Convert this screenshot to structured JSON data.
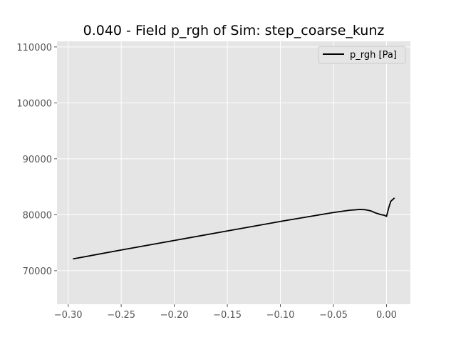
{
  "chart_data": {
    "type": "line",
    "title": "0.040 - Field p_rgh of Sim: step_coarse_kunz",
    "xlabel": "",
    "ylabel": "",
    "xlim": [
      -0.3105,
      0.0225
    ],
    "ylim": [
      64000,
      111000
    ],
    "xticks": [
      -0.3,
      -0.25,
      -0.2,
      -0.15,
      -0.1,
      -0.05,
      0.0
    ],
    "xtick_labels": [
      "−0.30",
      "−0.25",
      "−0.20",
      "−0.15",
      "−0.10",
      "−0.05",
      "0.00"
    ],
    "yticks": [
      70000,
      80000,
      90000,
      100000,
      110000
    ],
    "ytick_labels": [
      "70000",
      "80000",
      "90000",
      "100000",
      "110000"
    ],
    "grid": true,
    "legend_position": "top-right",
    "series": [
      {
        "name": "p_rgh [Pa]",
        "color": "#000000",
        "x": [
          -0.2955,
          -0.25,
          -0.2,
          -0.15,
          -0.1,
          -0.05,
          -0.035,
          -0.025,
          -0.02,
          -0.015,
          -0.01,
          -0.005,
          -0.002,
          0.0,
          0.002,
          0.004,
          0.0075
        ],
        "y": [
          72100,
          73700,
          75400,
          77100,
          78800,
          80400,
          80800,
          80950,
          80900,
          80700,
          80300,
          80000,
          79900,
          79700,
          81200,
          82400,
          83000
        ]
      }
    ]
  },
  "colors": {
    "axes_background": "#e5e5e5",
    "grid": "#ffffff",
    "tick_label": "#555555"
  }
}
